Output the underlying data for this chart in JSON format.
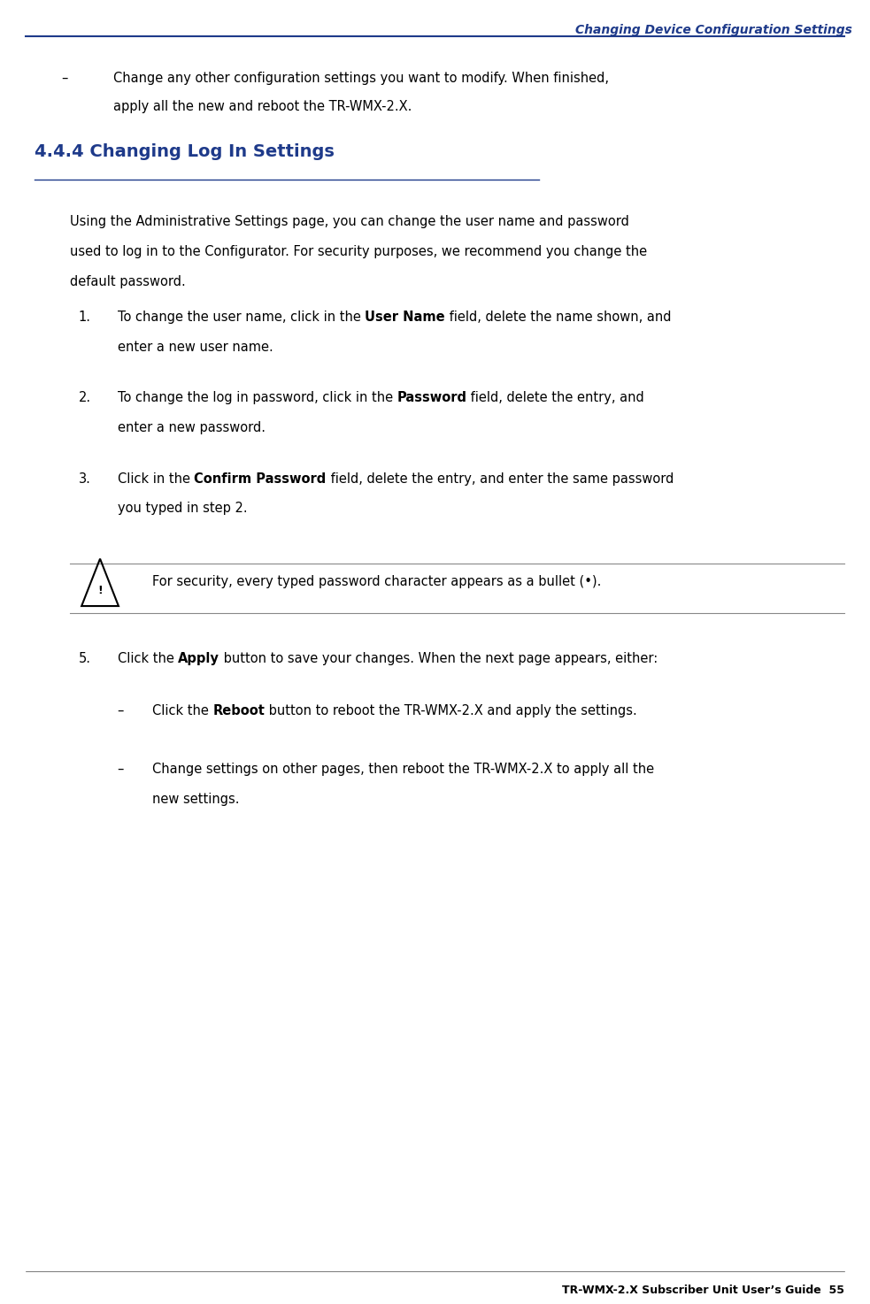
{
  "header_text": "Changing Device Configuration Settings",
  "header_color": "#1e3a8a",
  "header_line_color": "#1e3a8a",
  "footer_text": "TR-WMX-2.X Subscriber Unit User’s Guide",
  "footer_page": "55",
  "footer_color": "#000000",
  "bg_color": "#ffffff",
  "section_heading": "4.4.4 Changing Log In Settings",
  "section_heading_color": "#1e3a8a",
  "body_color": "#000000",
  "bullet_indent": 0.08,
  "content_indent": 0.12,
  "list_indent": 0.14,
  "bullet_item": "Change any other configuration settings you want to modify. When finished, apply all the new and reboot the TR-WMX-2.X.",
  "intro_paragraph": "Using the Administrative Settings page, you can change the user name and password used to log in to the Configurator. For security purposes, we recommend you change the default password.",
  "list_items": [
    {
      "num": "1.",
      "text_parts": [
        {
          "text": "To change the user name, click in the ",
          "bold": false
        },
        {
          "text": "User Name",
          "bold": true
        },
        {
          "text": " field, delete the name shown, and enter a new user name.",
          "bold": false
        }
      ]
    },
    {
      "num": "2.",
      "text_parts": [
        {
          "text": "To change the log in password, click in the ",
          "bold": false
        },
        {
          "text": "Password",
          "bold": true
        },
        {
          "text": " field, delete the entry, and enter a new password.",
          "bold": false
        }
      ]
    },
    {
      "num": "3.",
      "text_parts": [
        {
          "text": "Click in the ",
          "bold": false
        },
        {
          "text": "Confirm Password",
          "bold": true
        },
        {
          "text": " field, delete the entry, and enter the same password you typed in step 2.",
          "bold": false
        }
      ]
    }
  ],
  "note_text": "For security, every typed password character appears as a bullet (•).",
  "step5_parts": [
    {
      "text": "Click the ",
      "bold": false
    },
    {
      "text": "Apply",
      "bold": true
    },
    {
      "text": " button to save your changes. When the next page appears, either:",
      "bold": false
    }
  ],
  "sub_bullets": [
    {
      "text_parts": [
        {
          "text": "Click the ",
          "bold": false
        },
        {
          "text": "Reboot",
          "bold": true
        },
        {
          "text": " button to reboot the TR-WMX-2.X and apply the settings.",
          "bold": false
        }
      ]
    },
    {
      "text_parts": [
        {
          "text": "Change settings on other pages, then reboot the TR-WMX-2.X to apply all the new settings.",
          "bold": false
        }
      ]
    }
  ]
}
